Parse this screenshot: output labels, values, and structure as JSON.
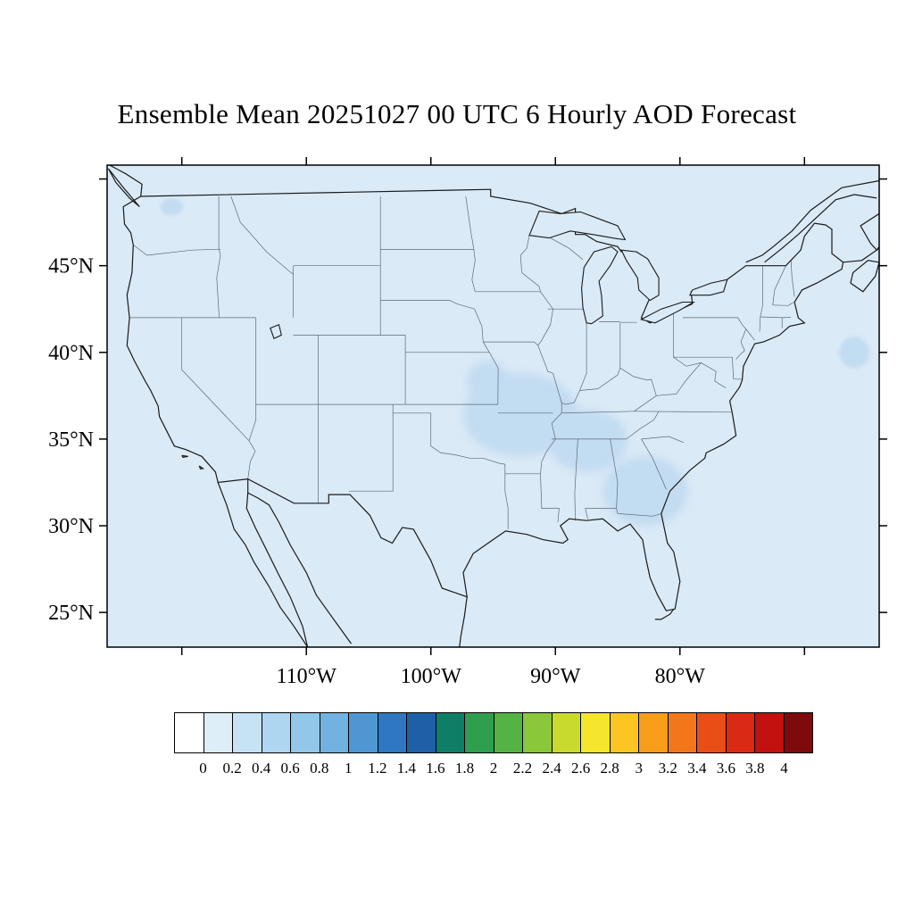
{
  "chart_data": {
    "type": "heatmap",
    "title": "Ensemble Mean 20251027 00 UTC 6 Hourly AOD Forecast",
    "xlabel": "",
    "ylabel": "",
    "grid": false,
    "colorbar_orientation": "horizontal-bottom",
    "lon_range": [
      -126,
      -64
    ],
    "lat_range": [
      23,
      50.8
    ],
    "lon_ticks": [
      {
        "lon": -120
      },
      {
        "lon": -110,
        "label": "110°W"
      },
      {
        "lon": -100,
        "label": "100°W"
      },
      {
        "lon": -90,
        "label": "90°W"
      },
      {
        "lon": -80,
        "label": "80°W"
      },
      {
        "lon": -70
      }
    ],
    "lat_ticks": [
      {
        "lat": 50
      },
      {
        "lat": 45,
        "label": "45°N"
      },
      {
        "lat": 40,
        "label": "40°N"
      },
      {
        "lat": 35,
        "label": "35°N"
      },
      {
        "lat": 30,
        "label": "30°N"
      },
      {
        "lat": 25,
        "label": "25°N"
      }
    ],
    "colorbar": {
      "labels": [
        "0",
        "0.2",
        "0.4",
        "0.6",
        "0.8",
        "1",
        "1.2",
        "1.4",
        "1.6",
        "1.8",
        "2",
        "2.2",
        "2.4",
        "2.6",
        "2.8",
        "3",
        "3.2",
        "3.4",
        "3.6",
        "3.8",
        "4"
      ],
      "colors": [
        "#ffffff",
        "#ddeef9",
        "#c6e2f5",
        "#aed6f1",
        "#93c7ea",
        "#72b2e0",
        "#4f97d3",
        "#2f77c0",
        "#1f5fa8",
        "#0e7f66",
        "#2f9e4d",
        "#55b244",
        "#8ac73a",
        "#c9da2f",
        "#f5e52c",
        "#fbc623",
        "#f89e1b",
        "#f4761b",
        "#e94e17",
        "#da2a13",
        "#c11210",
        "#7f0a0c"
      ]
    },
    "field": {
      "name": "AOD",
      "background_value": "0-0.2",
      "background_color": "#daeaf7",
      "patch_color": "#c2dcf1",
      "regions": [
        {
          "name": "ozarks-mid-mississippi-valley",
          "lon": -92.8,
          "lat": 36.4,
          "rlon": 4.6,
          "rlat": 2.4,
          "value": "0.2-0.4"
        },
        {
          "name": "tennessee-valley",
          "lon": -87.4,
          "lat": 34.9,
          "rlon": 3.2,
          "rlat": 1.8,
          "value": "0.2-0.4"
        },
        {
          "name": "georgia",
          "lon": -82.8,
          "lat": 32.0,
          "rlon": 3.4,
          "rlat": 2.0,
          "value": "0.2-0.4"
        },
        {
          "name": "eastern-kansas",
          "lon": -95.4,
          "lat": 38.3,
          "rlon": 1.7,
          "rlat": 1.2,
          "value": "0.2-0.4"
        },
        {
          "name": "north-central-washington",
          "lon": -120.8,
          "lat": 48.4,
          "rlon": 0.9,
          "rlat": 0.5,
          "value": "0.2-0.4"
        },
        {
          "name": "offshore-atlantic",
          "lon": -66.0,
          "lat": 40.0,
          "rlon": 1.2,
          "rlat": 0.9,
          "value": "0.2-0.4"
        }
      ]
    },
    "map": {
      "frame_color": "#000000",
      "coast_color": "#1a1a1a",
      "state_line_color": "#5f6b74"
    }
  }
}
